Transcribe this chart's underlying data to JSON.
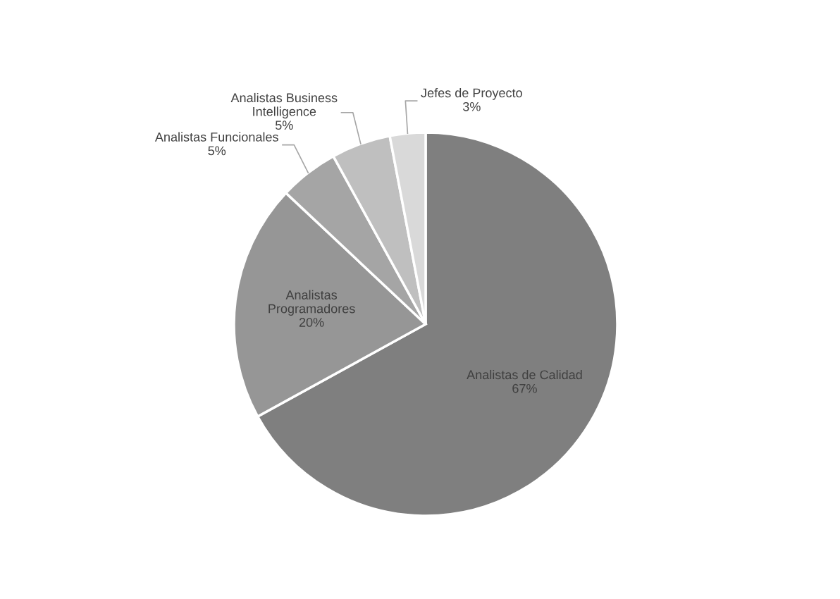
{
  "chart_data": {
    "type": "pie",
    "categories": [
      "Analistas de Calidad",
      "Analistas\nProgramadores",
      "Analistas Funcionales",
      "Analistas Business\nIntelligence",
      "Jefes de Proyecto"
    ],
    "values": [
      67,
      20,
      5,
      5,
      3
    ],
    "colors": [
      "#7f7f7f",
      "#969696",
      "#a5a5a5",
      "#bfbfbf",
      "#d9d9d9"
    ],
    "value_labels": [
      "67%",
      "20%",
      "5%",
      "5%",
      "3%"
    ]
  }
}
